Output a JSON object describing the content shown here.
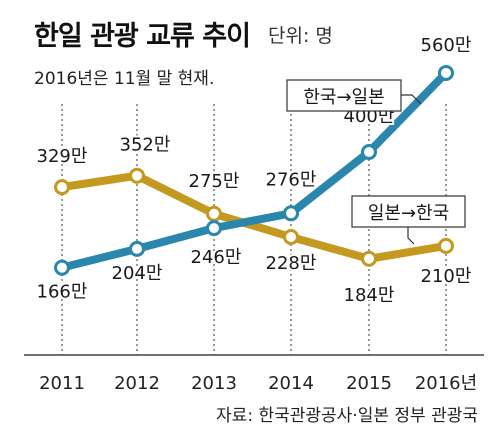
{
  "title": "한일 관광 교류 추이",
  "unit": "단위: 명",
  "subtitle": "2016년은 11월 말 현재.",
  "source": "자료: 한국관광공사·일본 정부 관광국",
  "colors": {
    "korea_to_japan": "#2a86ad",
    "japan_to_korea": "#c3991f",
    "axis": "#444444",
    "grid": "#333333"
  },
  "chart_data": {
    "type": "line",
    "x": [
      "2011",
      "2012",
      "2013",
      "2014",
      "2015",
      "2016년"
    ],
    "series": [
      {
        "name": "한국→일본",
        "values": [
          166,
          204,
          246,
          276,
          400,
          560
        ],
        "labels": [
          "166만",
          "204만",
          "246만",
          "276만",
          "400만",
          "560만"
        ]
      },
      {
        "name": "일본→한국",
        "values": [
          329,
          352,
          275,
          228,
          184,
          210
        ],
        "labels": [
          "329만",
          "352만",
          "275만",
          "228만",
          "184만",
          "210만"
        ]
      }
    ],
    "xlabel": "",
    "ylabel": "",
    "ylim": [
      100,
      600
    ],
    "grid": "vertical dashed lines at each year"
  }
}
